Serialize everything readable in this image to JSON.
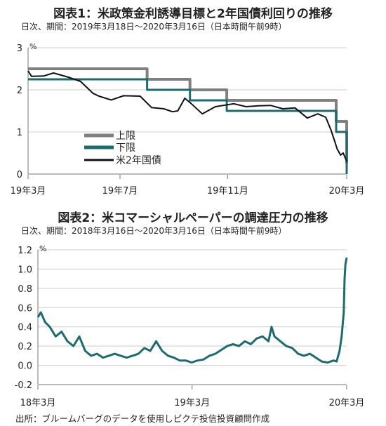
{
  "chart_data": [
    {
      "type": "line",
      "title": "図表1：米政策金利誘導目標と2年国債利回りの推移",
      "subtitle": "日次、期間：2019年3月18日～2020年3月16日（日本時間午前9時）",
      "unit": "%",
      "ylim": [
        0,
        3
      ],
      "yticks": [
        "3",
        "2",
        "1",
        "0"
      ],
      "xlim": [
        "2019-03-18",
        "2020-03-16"
      ],
      "xticks": [
        {
          "label": "19年3月",
          "x": "2019-03-18"
        },
        {
          "label": "19年7月",
          "x": "2019-07-01"
        },
        {
          "label": "19年11月",
          "x": "2019-11-01"
        },
        {
          "label": "20年3月",
          "x": "2020-03-16"
        }
      ],
      "legend_position": "bottom-left",
      "grid": true,
      "series": [
        {
          "name": "上限",
          "color": "#808080",
          "step": true,
          "points": [
            [
              "2019-03-18",
              2.5
            ],
            [
              "2019-08-01",
              2.5
            ],
            [
              "2019-08-01",
              2.25
            ],
            [
              "2019-09-19",
              2.25
            ],
            [
              "2019-09-19",
              2.0
            ],
            [
              "2019-10-31",
              2.0
            ],
            [
              "2019-10-31",
              1.75
            ],
            [
              "2020-03-04",
              1.75
            ],
            [
              "2020-03-04",
              1.25
            ],
            [
              "2020-03-16",
              1.25
            ],
            [
              "2020-03-16",
              0.25
            ]
          ]
        },
        {
          "name": "下限",
          "color": "#1c6b6e",
          "step": true,
          "points": [
            [
              "2019-03-18",
              2.25
            ],
            [
              "2019-08-01",
              2.25
            ],
            [
              "2019-08-01",
              2.0
            ],
            [
              "2019-09-19",
              2.0
            ],
            [
              "2019-09-19",
              1.75
            ],
            [
              "2019-10-31",
              1.75
            ],
            [
              "2019-10-31",
              1.5
            ],
            [
              "2020-03-04",
              1.5
            ],
            [
              "2020-03-04",
              1.0
            ],
            [
              "2020-03-16",
              1.0
            ],
            [
              "2020-03-16",
              0.0
            ]
          ]
        },
        {
          "name": "米2年国債",
          "color": "#111111",
          "step": false,
          "points": [
            [
              "2019-03-18",
              2.45
            ],
            [
              "2019-03-22",
              2.32
            ],
            [
              "2019-04-05",
              2.33
            ],
            [
              "2019-04-16",
              2.4
            ],
            [
              "2019-05-03",
              2.3
            ],
            [
              "2019-05-17",
              2.2
            ],
            [
              "2019-05-31",
              1.92
            ],
            [
              "2019-06-07",
              1.85
            ],
            [
              "2019-06-21",
              1.76
            ],
            [
              "2019-07-05",
              1.86
            ],
            [
              "2019-07-24",
              1.85
            ],
            [
              "2019-08-06",
              1.58
            ],
            [
              "2019-08-20",
              1.55
            ],
            [
              "2019-08-30",
              1.48
            ],
            [
              "2019-09-05",
              1.5
            ],
            [
              "2019-09-13",
              1.8
            ],
            [
              "2019-09-20",
              1.68
            ],
            [
              "2019-10-03",
              1.43
            ],
            [
              "2019-10-18",
              1.6
            ],
            [
              "2019-11-08",
              1.67
            ],
            [
              "2019-11-22",
              1.6
            ],
            [
              "2019-12-06",
              1.62
            ],
            [
              "2019-12-20",
              1.63
            ],
            [
              "2020-01-03",
              1.55
            ],
            [
              "2020-01-17",
              1.57
            ],
            [
              "2020-01-31",
              1.33
            ],
            [
              "2020-02-12",
              1.43
            ],
            [
              "2020-02-21",
              1.35
            ],
            [
              "2020-02-27",
              1.05
            ],
            [
              "2020-03-02",
              0.8
            ],
            [
              "2020-03-05",
              0.6
            ],
            [
              "2020-03-09",
              0.45
            ],
            [
              "2020-03-12",
              0.5
            ],
            [
              "2020-03-16",
              0.3
            ]
          ]
        }
      ]
    },
    {
      "type": "line",
      "title": "図表2：米コマーシャルペーパーの調達圧力の推移",
      "subtitle": "日次、期間：2018年3月16日～2020年3月16日（日本時間午前9時）",
      "unit": "%",
      "ylim": [
        -0.2,
        1.2
      ],
      "yticks": [
        "1.2",
        "1.0",
        "0.8",
        "0.6",
        "0.4",
        "0.2",
        "0.0",
        "-0.2"
      ],
      "xlim": [
        "2018-03-16",
        "2020-03-16"
      ],
      "xticks": [
        {
          "label": "18年3月",
          "x": "2018-03-16"
        },
        {
          "label": "19年3月",
          "x": "2019-03-16"
        },
        {
          "label": "20年3月",
          "x": "2020-03-16"
        }
      ],
      "grid": true,
      "series": [
        {
          "color": "#1c6b6e",
          "points": [
            [
              "2018-03-16",
              0.5
            ],
            [
              "2018-03-23",
              0.55
            ],
            [
              "2018-04-02",
              0.45
            ],
            [
              "2018-04-13",
              0.4
            ],
            [
              "2018-04-27",
              0.3
            ],
            [
              "2018-05-11",
              0.35
            ],
            [
              "2018-05-25",
              0.25
            ],
            [
              "2018-06-08",
              0.2
            ],
            [
              "2018-06-22",
              0.3
            ],
            [
              "2018-07-06",
              0.15
            ],
            [
              "2018-07-20",
              0.1
            ],
            [
              "2018-08-03",
              0.12
            ],
            [
              "2018-08-17",
              0.08
            ],
            [
              "2018-08-31",
              0.1
            ],
            [
              "2018-09-14",
              0.12
            ],
            [
              "2018-09-28",
              0.1
            ],
            [
              "2018-10-12",
              0.08
            ],
            [
              "2018-10-26",
              0.1
            ],
            [
              "2018-11-09",
              0.12
            ],
            [
              "2018-11-23",
              0.18
            ],
            [
              "2018-12-07",
              0.15
            ],
            [
              "2018-12-21",
              0.25
            ],
            [
              "2019-01-04",
              0.15
            ],
            [
              "2019-01-18",
              0.1
            ],
            [
              "2019-02-01",
              0.08
            ],
            [
              "2019-02-15",
              0.05
            ],
            [
              "2019-03-01",
              0.05
            ],
            [
              "2019-03-15",
              0.03
            ],
            [
              "2019-03-29",
              0.05
            ],
            [
              "2019-04-12",
              0.06
            ],
            [
              "2019-04-26",
              0.1
            ],
            [
              "2019-05-10",
              0.12
            ],
            [
              "2019-05-24",
              0.16
            ],
            [
              "2019-06-07",
              0.2
            ],
            [
              "2019-06-21",
              0.22
            ],
            [
              "2019-07-05",
              0.2
            ],
            [
              "2019-07-19",
              0.25
            ],
            [
              "2019-08-02",
              0.22
            ],
            [
              "2019-08-16",
              0.28
            ],
            [
              "2019-08-30",
              0.3
            ],
            [
              "2019-09-13",
              0.25
            ],
            [
              "2019-09-20",
              0.4
            ],
            [
              "2019-09-27",
              0.3
            ],
            [
              "2019-10-11",
              0.25
            ],
            [
              "2019-10-25",
              0.2
            ],
            [
              "2019-11-08",
              0.18
            ],
            [
              "2019-11-22",
              0.12
            ],
            [
              "2019-12-06",
              0.1
            ],
            [
              "2019-12-20",
              0.12
            ],
            [
              "2020-01-03",
              0.08
            ],
            [
              "2020-01-17",
              0.04
            ],
            [
              "2020-01-31",
              0.03
            ],
            [
              "2020-02-14",
              0.05
            ],
            [
              "2020-02-21",
              0.04
            ],
            [
              "2020-02-28",
              0.15
            ],
            [
              "2020-03-04",
              0.3
            ],
            [
              "2020-03-09",
              0.55
            ],
            [
              "2020-03-11",
              0.9
            ],
            [
              "2020-03-13",
              1.05
            ],
            [
              "2020-03-16",
              1.12
            ]
          ]
        }
      ]
    }
  ],
  "source_note": "出所：ブルームバーグのデータを使用しピクテ投信投資顧問作成"
}
